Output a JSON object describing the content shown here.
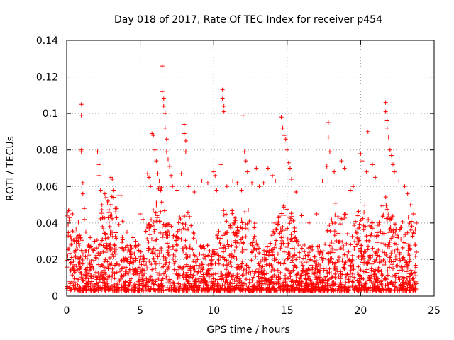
{
  "chart_data": {
    "type": "scatter",
    "title": "Day 018 of 2017, Rate Of TEC Index for receiver p454",
    "xlabel": "GPS time / hours",
    "ylabel": "ROTI / TECUs",
    "xlim": [
      0,
      25
    ],
    "ylim": [
      0,
      0.14
    ],
    "xticks": [
      0,
      5,
      10,
      15,
      20,
      25
    ],
    "xtick_labels": [
      "0",
      "5",
      "10",
      "15",
      "20",
      "25"
    ],
    "yticks": [
      0,
      0.02,
      0.04,
      0.06,
      0.08,
      0.1,
      0.12,
      0.14
    ],
    "ytick_labels": [
      "0",
      "0.02",
      "0.04",
      "0.06",
      "0.08",
      "0.1",
      "0.12",
      "0.14"
    ],
    "grid": true,
    "marker": "+",
    "color": "#ff0000",
    "series": [
      {
        "name": "ROTI",
        "points": [
          [
            0.2,
            0.047
          ],
          [
            0.4,
            0.045
          ],
          [
            0.5,
            0.035
          ],
          [
            0.3,
            0.028
          ],
          [
            0.6,
            0.022
          ],
          [
            0.8,
            0.018
          ],
          [
            1.0,
            0.105
          ],
          [
            1.0,
            0.099
          ],
          [
            1.0,
            0.08
          ],
          [
            1.0,
            0.079
          ],
          [
            1.1,
            0.062
          ],
          [
            1.1,
            0.056
          ],
          [
            1.2,
            0.048
          ],
          [
            1.2,
            0.042
          ],
          [
            1.3,
            0.035
          ],
          [
            1.6,
            0.032
          ],
          [
            1.9,
            0.03
          ],
          [
            2.1,
            0.079
          ],
          [
            2.2,
            0.072
          ],
          [
            2.2,
            0.066
          ],
          [
            2.3,
            0.058
          ],
          [
            2.4,
            0.05
          ],
          [
            2.6,
            0.056
          ],
          [
            2.8,
            0.052
          ],
          [
            3.0,
            0.065
          ],
          [
            3.1,
            0.064
          ],
          [
            3.2,
            0.058
          ],
          [
            3.3,
            0.048
          ],
          [
            3.5,
            0.055
          ],
          [
            3.7,
            0.055
          ],
          [
            3.8,
            0.041
          ],
          [
            4.1,
            0.035
          ],
          [
            4.5,
            0.032
          ],
          [
            4.7,
            0.03
          ],
          [
            5.0,
            0.045
          ],
          [
            5.2,
            0.042
          ],
          [
            5.5,
            0.067
          ],
          [
            5.6,
            0.065
          ],
          [
            5.7,
            0.06
          ],
          [
            5.8,
            0.089
          ],
          [
            5.9,
            0.088
          ],
          [
            6.0,
            0.08
          ],
          [
            6.1,
            0.074
          ],
          [
            6.2,
            0.067
          ],
          [
            6.3,
            0.063
          ],
          [
            6.4,
            0.058
          ],
          [
            6.5,
            0.126
          ],
          [
            6.5,
            0.112
          ],
          [
            6.6,
            0.108
          ],
          [
            6.6,
            0.104
          ],
          [
            6.7,
            0.1
          ],
          [
            6.7,
            0.092
          ],
          [
            6.8,
            0.086
          ],
          [
            6.8,
            0.079
          ],
          [
            6.9,
            0.075
          ],
          [
            7.0,
            0.071
          ],
          [
            7.1,
            0.066
          ],
          [
            7.2,
            0.06
          ],
          [
            7.5,
            0.058
          ],
          [
            7.8,
            0.067
          ],
          [
            8.0,
            0.094
          ],
          [
            8.0,
            0.089
          ],
          [
            8.1,
            0.085
          ],
          [
            8.1,
            0.079
          ],
          [
            8.3,
            0.06
          ],
          [
            8.7,
            0.057
          ],
          [
            9.2,
            0.063
          ],
          [
            9.6,
            0.062
          ],
          [
            10.0,
            0.068
          ],
          [
            10.1,
            0.066
          ],
          [
            10.2,
            0.058
          ],
          [
            10.5,
            0.072
          ],
          [
            10.6,
            0.113
          ],
          [
            10.6,
            0.108
          ],
          [
            10.7,
            0.104
          ],
          [
            10.7,
            0.101
          ],
          [
            10.9,
            0.06
          ],
          [
            11.3,
            0.063
          ],
          [
            11.6,
            0.062
          ],
          [
            11.9,
            0.058
          ],
          [
            12.0,
            0.099
          ],
          [
            12.1,
            0.079
          ],
          [
            12.2,
            0.074
          ],
          [
            12.3,
            0.068
          ],
          [
            12.6,
            0.062
          ],
          [
            12.9,
            0.07
          ],
          [
            13.1,
            0.06
          ],
          [
            13.4,
            0.062
          ],
          [
            13.7,
            0.07
          ],
          [
            14.0,
            0.066
          ],
          [
            14.2,
            0.063
          ],
          [
            14.6,
            0.098
          ],
          [
            14.7,
            0.092
          ],
          [
            14.8,
            0.088
          ],
          [
            14.9,
            0.086
          ],
          [
            15.0,
            0.08
          ],
          [
            15.1,
            0.073
          ],
          [
            15.2,
            0.07
          ],
          [
            15.3,
            0.064
          ],
          [
            15.6,
            0.057
          ],
          [
            16.0,
            0.044
          ],
          [
            16.5,
            0.04
          ],
          [
            17.0,
            0.045
          ],
          [
            17.4,
            0.063
          ],
          [
            17.7,
            0.071
          ],
          [
            17.8,
            0.095
          ],
          [
            17.8,
            0.087
          ],
          [
            17.9,
            0.079
          ],
          [
            18.2,
            0.068
          ],
          [
            18.7,
            0.074
          ],
          [
            18.9,
            0.07
          ],
          [
            19.3,
            0.058
          ],
          [
            19.5,
            0.06
          ],
          [
            20.0,
            0.078
          ],
          [
            20.1,
            0.074
          ],
          [
            20.4,
            0.068
          ],
          [
            20.5,
            0.09
          ],
          [
            20.8,
            0.072
          ],
          [
            21.0,
            0.065
          ],
          [
            21.7,
            0.106
          ],
          [
            21.7,
            0.101
          ],
          [
            21.8,
            0.096
          ],
          [
            21.8,
            0.092
          ],
          [
            21.9,
            0.087
          ],
          [
            22.0,
            0.08
          ],
          [
            22.1,
            0.077
          ],
          [
            22.2,
            0.072
          ],
          [
            22.3,
            0.068
          ],
          [
            22.6,
            0.063
          ],
          [
            23.0,
            0.06
          ],
          [
            23.2,
            0.056
          ],
          [
            23.4,
            0.05
          ],
          [
            23.6,
            0.045
          ],
          [
            23.8,
            0.04
          ]
        ]
      }
    ]
  }
}
